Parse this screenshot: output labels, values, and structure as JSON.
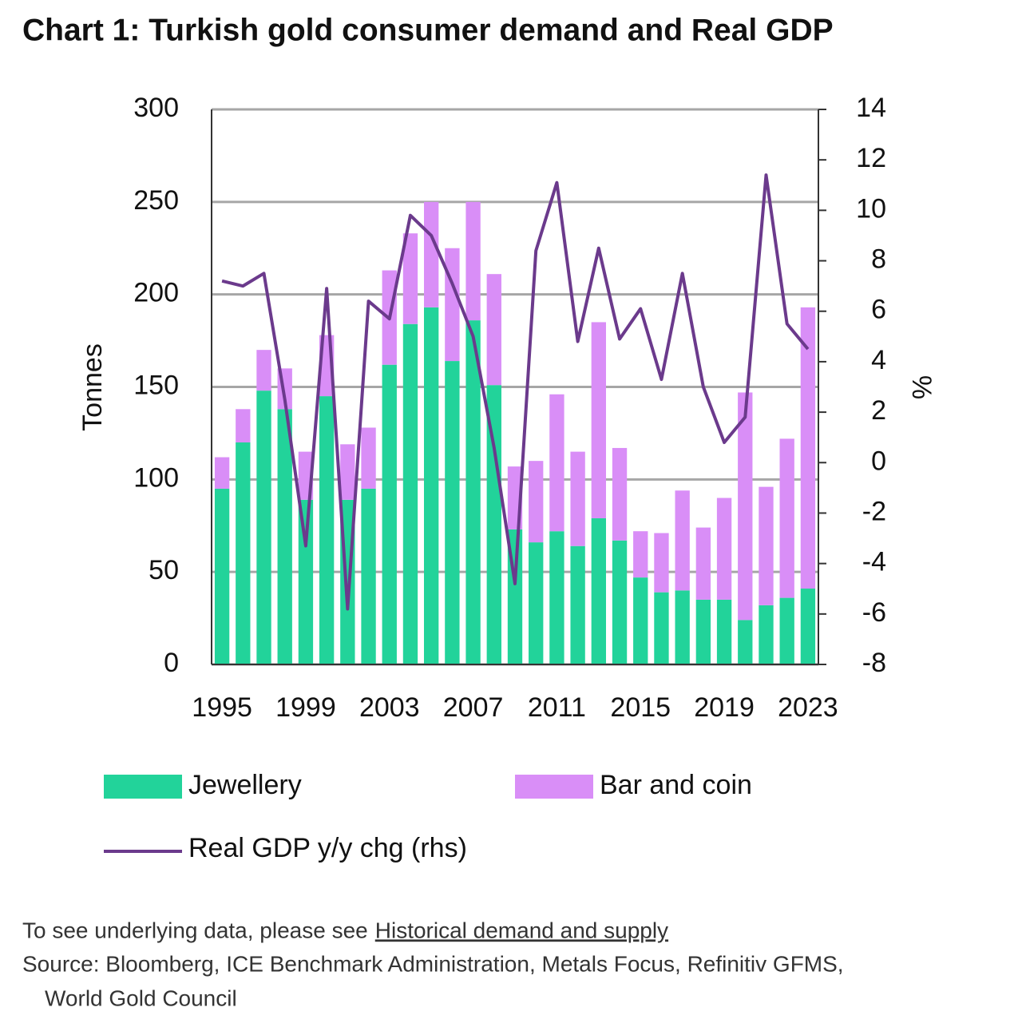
{
  "chart_data": {
    "type": "bar",
    "title": "Chart 1: Turkish gold consumer demand and Real GDP",
    "ylabel": "Tonnes",
    "y2label": "%",
    "categories": [
      "1995",
      null,
      null,
      null,
      "1999",
      null,
      null,
      null,
      "2003",
      null,
      null,
      null,
      "2007",
      null,
      null,
      null,
      "2011",
      null,
      null,
      null,
      "2015",
      null,
      null,
      null,
      "2019",
      null,
      null,
      null,
      "2023"
    ],
    "stacked": true,
    "grid": true,
    "ylim": [
      0,
      300
    ],
    "yticks": [
      0,
      50,
      100,
      150,
      200,
      250,
      300
    ],
    "y2lim": [
      -8,
      14
    ],
    "y2ticks": [
      -8,
      -6,
      -4,
      -2,
      0,
      2,
      4,
      6,
      8,
      10,
      12,
      14
    ],
    "series": [
      {
        "name": "Jewellery",
        "type": "bar",
        "color": "#22d39a",
        "values": [
          95,
          120,
          148,
          138,
          89,
          145,
          89,
          95,
          162,
          184,
          193,
          164,
          186,
          151,
          73,
          66,
          72,
          64,
          79,
          67,
          47,
          39,
          40,
          35,
          35,
          24,
          32,
          36,
          41
        ]
      },
      {
        "name": "Bar and coin",
        "type": "bar",
        "color": "#d98ef7",
        "values": [
          17,
          18,
          22,
          22,
          26,
          33,
          30,
          33,
          51,
          49,
          57,
          61,
          64,
          60,
          34,
          44,
          74,
          51,
          106,
          50,
          25,
          32,
          54,
          39,
          55,
          123,
          64,
          86,
          152
        ]
      },
      {
        "name": "Real GDP y/y chg (rhs)",
        "type": "line",
        "axis": "y2",
        "color": "#6b3a8c",
        "values": [
          7.2,
          7.0,
          7.5,
          2.5,
          -3.3,
          6.9,
          -5.8,
          6.4,
          5.7,
          9.8,
          9.0,
          7.1,
          5.0,
          0.6,
          -4.8,
          8.4,
          11.1,
          4.8,
          8.5,
          4.9,
          6.1,
          3.3,
          7.5,
          3.0,
          0.8,
          1.8,
          11.4,
          5.5,
          4.5
        ]
      }
    ]
  },
  "footer": {
    "note": "To see underlying data, please see",
    "link": "Historical demand and supply",
    "source_lines": [
      "Source: Bloomberg, ICE Benchmark Administration, Metals Focus, Refinitiv GFMS,",
      "World Gold Council"
    ]
  }
}
